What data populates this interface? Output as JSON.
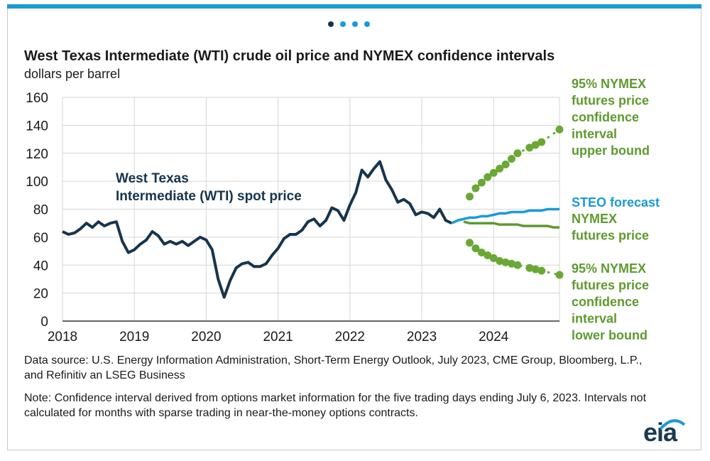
{
  "page": {
    "title": "West Texas Intermediate (WTI) crude oil price and NYMEX confidence intervals",
    "units": "dollars per barrel",
    "source": "Data source: U.S. Energy Information Administration,  Short-Term Energy Outlook, July 2023, CME Group, Bloomberg, L.P., and Refinitiv an LSEG Business",
    "note": "Note: Confidence interval derived from options market information for the five trading days ending July 6, 2023. Intervals not calculated for months with sparse trading in near-the-money options contracts.",
    "logo": "eia",
    "carousel_dots": 4,
    "colors": {
      "accent_bar": "#1a9ad6",
      "dot_active": "#16344d",
      "dot_inactive": "#1a9ad6"
    }
  },
  "chart_data": {
    "type": "line",
    "ylim": [
      0,
      160
    ],
    "yticks": [
      0,
      20,
      40,
      60,
      80,
      100,
      120,
      140,
      160
    ],
    "xlim": [
      "2018-01",
      "2024-12"
    ],
    "xticks": [
      "2018",
      "2019",
      "2020",
      "2021",
      "2022",
      "2023",
      "2024"
    ],
    "grid": true,
    "series": [
      {
        "name": "West Texas Intermediate (WTI) spot price",
        "color": "#16344d",
        "style": "solid",
        "x": [
          "2018-01",
          "2018-02",
          "2018-03",
          "2018-04",
          "2018-05",
          "2018-06",
          "2018-07",
          "2018-08",
          "2018-09",
          "2018-10",
          "2018-11",
          "2018-12",
          "2019-01",
          "2019-02",
          "2019-03",
          "2019-04",
          "2019-05",
          "2019-06",
          "2019-07",
          "2019-08",
          "2019-09",
          "2019-10",
          "2019-11",
          "2019-12",
          "2020-01",
          "2020-02",
          "2020-03",
          "2020-04",
          "2020-05",
          "2020-06",
          "2020-07",
          "2020-08",
          "2020-09",
          "2020-10",
          "2020-11",
          "2020-12",
          "2021-01",
          "2021-02",
          "2021-03",
          "2021-04",
          "2021-05",
          "2021-06",
          "2021-07",
          "2021-08",
          "2021-09",
          "2021-10",
          "2021-11",
          "2021-12",
          "2022-01",
          "2022-02",
          "2022-03",
          "2022-04",
          "2022-05",
          "2022-06",
          "2022-07",
          "2022-08",
          "2022-09",
          "2022-10",
          "2022-11",
          "2022-12",
          "2023-01",
          "2023-02",
          "2023-03",
          "2023-04",
          "2023-05",
          "2023-06"
        ],
        "values": [
          64,
          62,
          63,
          66,
          70,
          67,
          71,
          68,
          70,
          71,
          57,
          49,
          51,
          55,
          58,
          64,
          61,
          55,
          57,
          55,
          57,
          54,
          57,
          60,
          58,
          51,
          30,
          17,
          29,
          38,
          41,
          42,
          39,
          39,
          41,
          47,
          52,
          59,
          62,
          62,
          65,
          71,
          73,
          68,
          72,
          81,
          79,
          72,
          83,
          92,
          108,
          103,
          109,
          114,
          101,
          94,
          85,
          87,
          84,
          76,
          78,
          77,
          74,
          80,
          72,
          70
        ]
      },
      {
        "name": "STEO forecast",
        "color": "#1a9ad6",
        "style": "solid",
        "x": [
          "2023-06",
          "2023-07",
          "2023-08",
          "2023-09",
          "2023-10",
          "2023-11",
          "2023-12",
          "2024-01",
          "2024-02",
          "2024-03",
          "2024-04",
          "2024-05",
          "2024-06",
          "2024-07",
          "2024-08",
          "2024-09",
          "2024-10",
          "2024-11",
          "2024-12"
        ],
        "values": [
          70,
          72,
          73,
          74,
          74,
          75,
          75,
          76,
          77,
          77,
          78,
          78,
          78,
          79,
          79,
          79,
          80,
          80,
          80
        ]
      },
      {
        "name": "NYMEX futures price",
        "color": "#5e9a2f",
        "style": "solid",
        "x": [
          "2023-08",
          "2023-09",
          "2023-10",
          "2023-11",
          "2023-12",
          "2024-01",
          "2024-02",
          "2024-03",
          "2024-04",
          "2024-05",
          "2024-06",
          "2024-07",
          "2024-08",
          "2024-09",
          "2024-10",
          "2024-11",
          "2024-12"
        ],
        "values": [
          71,
          70,
          70,
          70,
          70,
          70,
          69,
          69,
          69,
          69,
          68,
          68,
          68,
          68,
          68,
          67,
          67
        ]
      },
      {
        "name": "95% NYMEX futures price confidence interval upper bound",
        "color": "#6aa836",
        "style": "dotted",
        "x": [
          "2023-09",
          "2023-10",
          "2023-11",
          "2023-12",
          "2024-01",
          "2024-02",
          "2024-03",
          "2024-04",
          "2024-05",
          "2024-07",
          "2024-08",
          "2024-09",
          "2024-12"
        ],
        "values": [
          89,
          95,
          99,
          103,
          106,
          109,
          112,
          116,
          120,
          124,
          126,
          128,
          137
        ]
      },
      {
        "name": "95% NYMEX futures price confidence interval lower bound",
        "color": "#6aa836",
        "style": "dotted",
        "x": [
          "2023-09",
          "2023-10",
          "2023-11",
          "2023-12",
          "2024-01",
          "2024-02",
          "2024-03",
          "2024-04",
          "2024-05",
          "2024-07",
          "2024-08",
          "2024-09",
          "2024-12"
        ],
        "values": [
          56,
          52,
          49,
          47,
          45,
          43,
          42,
          41,
          40,
          38,
          37,
          36,
          33
        ]
      }
    ],
    "annotations": {
      "wti": [
        "West Texas",
        "Intermediate (WTI) spot price"
      ],
      "upper": [
        "95% NYMEX",
        "futures price",
        "confidence",
        "interval",
        "upper bound"
      ],
      "steo": "STEO forecast",
      "nymex": [
        "NYMEX",
        "futures price"
      ],
      "lower": [
        "95% NYMEX",
        "futures price",
        "confidence",
        "interval",
        "lower bound"
      ]
    }
  }
}
